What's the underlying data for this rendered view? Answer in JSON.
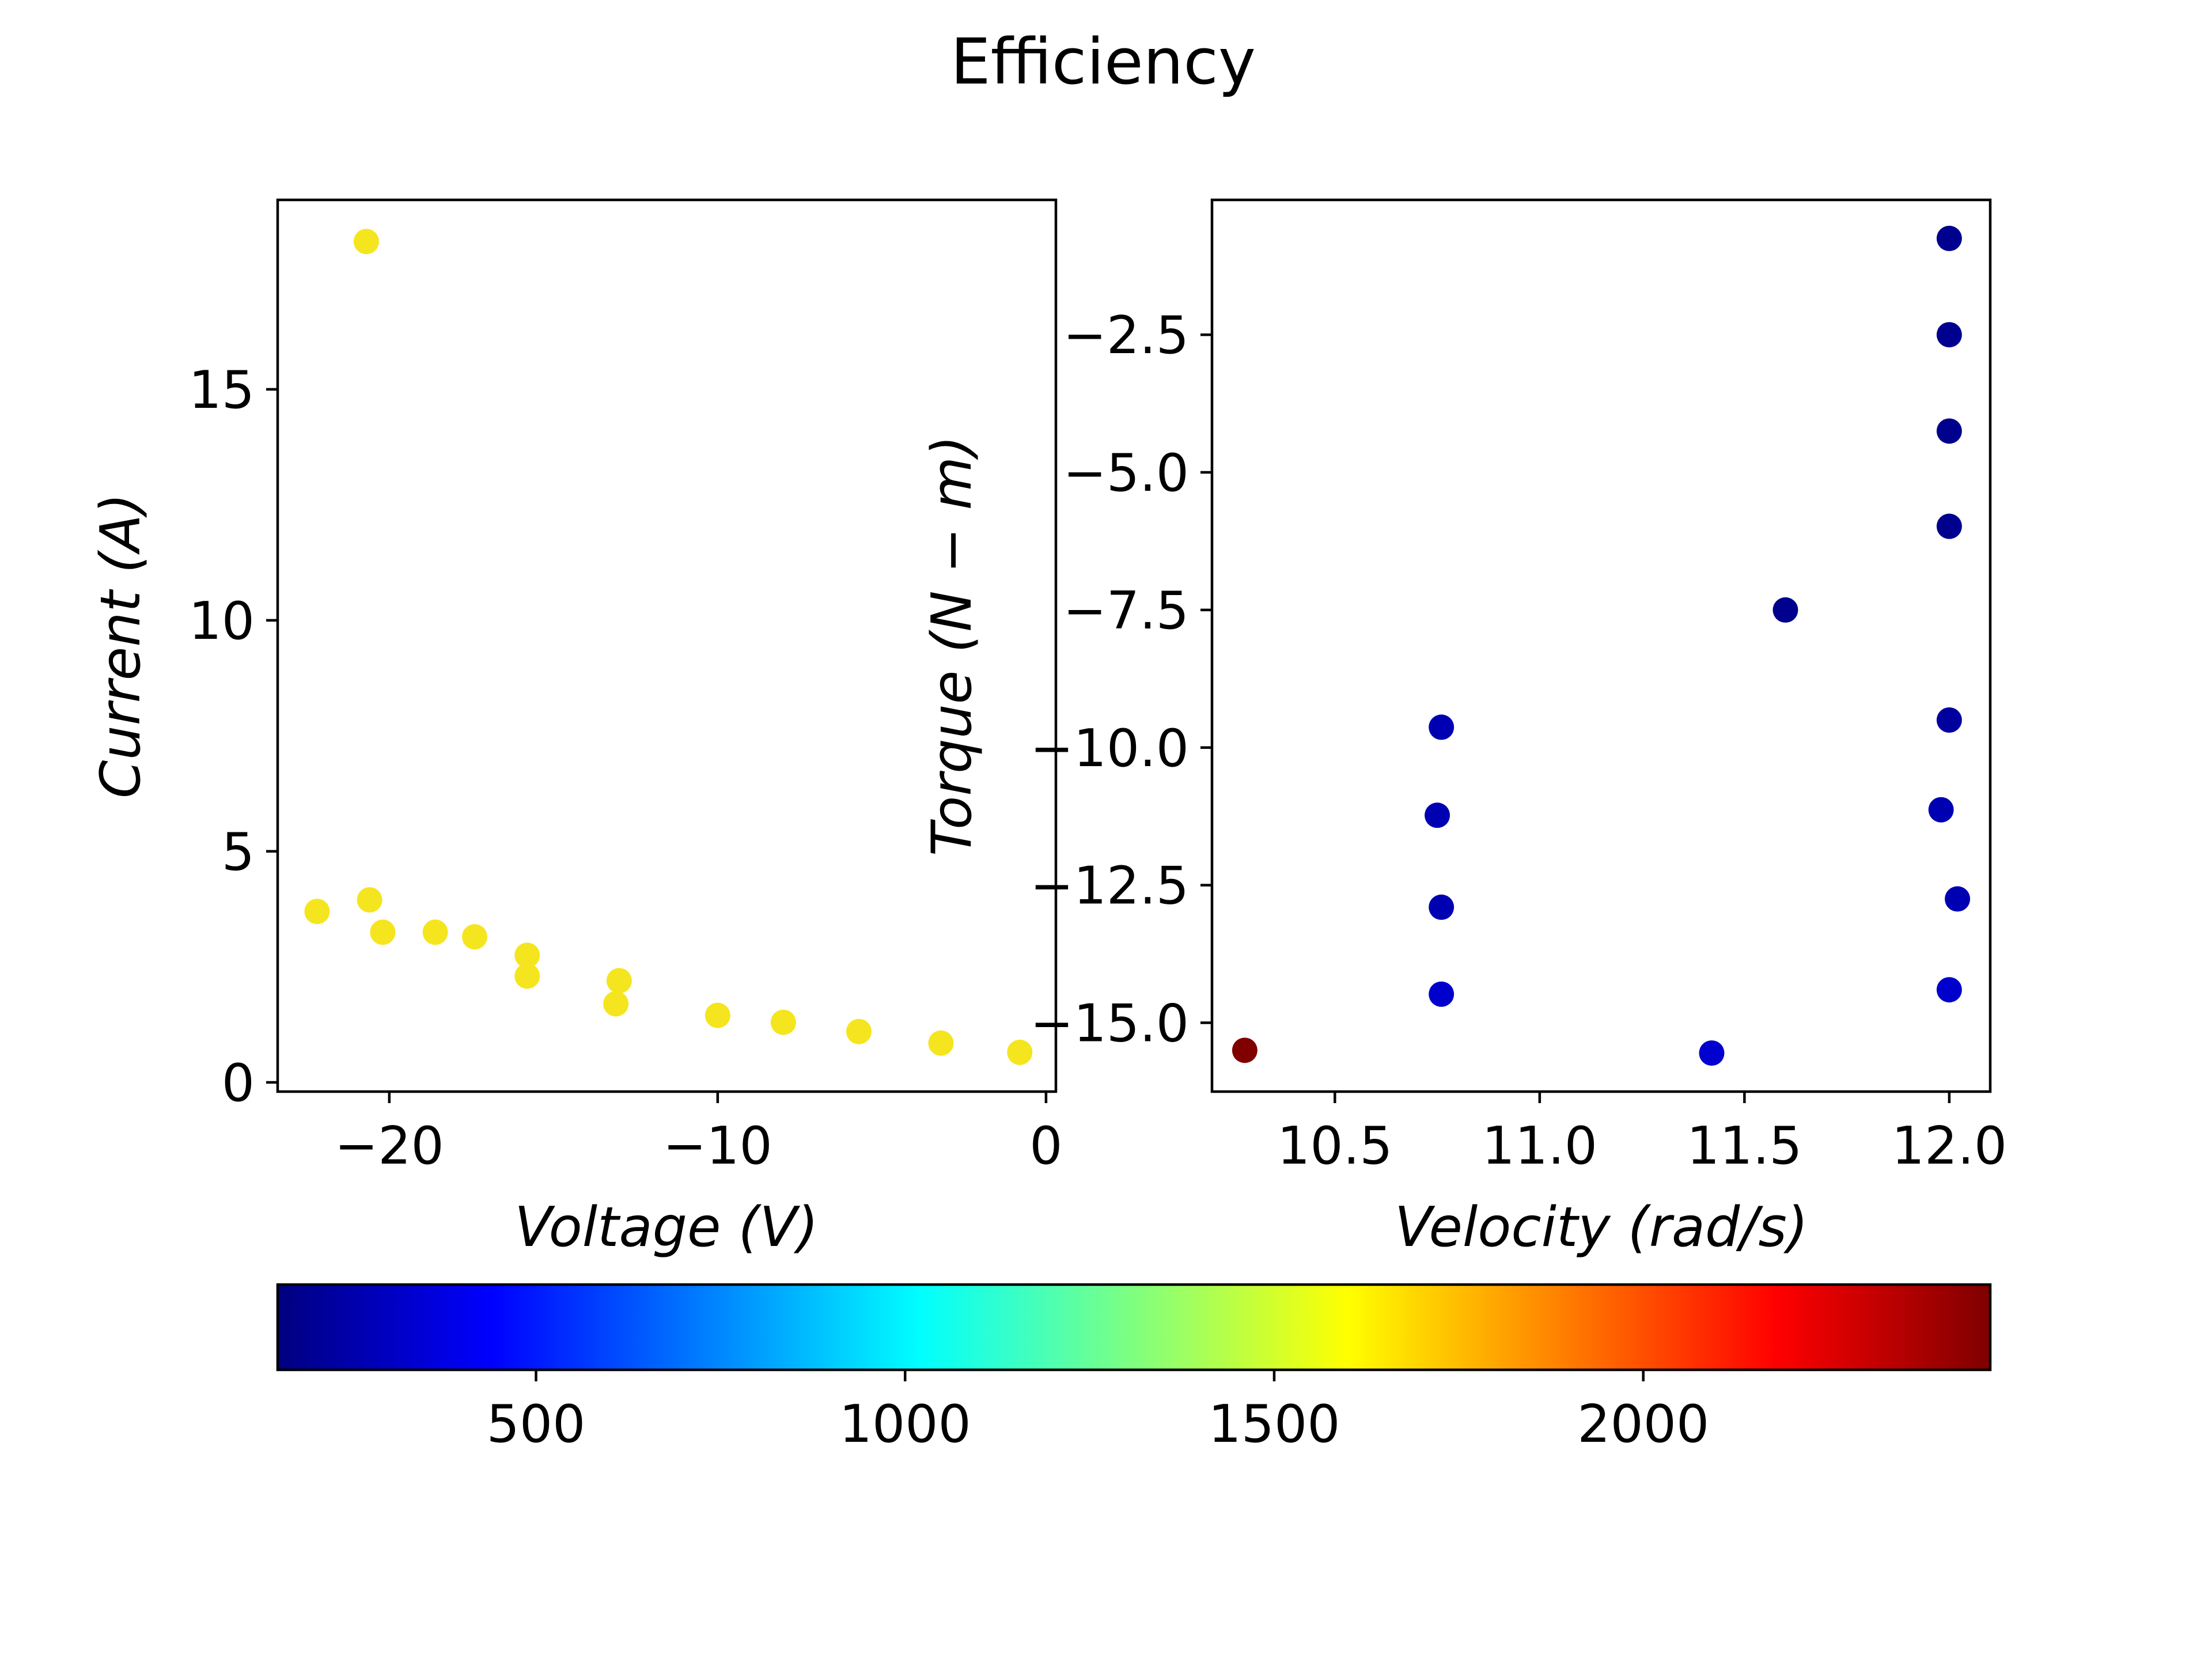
{
  "chart_data": [
    {
      "type": "scatter",
      "title": "Efficiency",
      "xlabel": "Voltage (V)",
      "ylabel": "Current (A)",
      "xlim": [
        -23.4,
        0.3
      ],
      "ylim": [
        -0.2,
        19.1
      ],
      "xticks": [
        -20,
        -10,
        0
      ],
      "xtick_labels": [
        "−20",
        "−10",
        "0"
      ],
      "yticks": [
        0,
        5,
        10,
        15
      ],
      "ytick_labels": [
        "0",
        "5",
        "10",
        "15"
      ],
      "grid": false,
      "color": "#f5e51e",
      "x": [
        -20.7,
        -22.2,
        -20.6,
        -20.2,
        -18.6,
        -17.4,
        -15.8,
        -15.8,
        -13.0,
        -13.1,
        -10.0,
        -8.0,
        -5.7,
        -3.2,
        -0.8
      ],
      "y": [
        18.2,
        3.7,
        3.95,
        3.25,
        3.25,
        3.15,
        2.75,
        2.3,
        2.2,
        1.7,
        1.45,
        1.3,
        1.1,
        0.85,
        0.65
      ]
    },
    {
      "type": "scatter",
      "xlabel": "Velocity (rad/s)",
      "ylabel": "Torque (N − m)",
      "xlim": [
        10.2,
        12.1
      ],
      "ylim": [
        -16.25,
        -0.05
      ],
      "xticks": [
        10.5,
        11.0,
        11.5,
        12.0
      ],
      "xtick_labels": [
        "10.5",
        "11.0",
        "11.5",
        "12.0"
      ],
      "yticks": [
        -2.5,
        -5.0,
        -7.5,
        -10.0,
        -12.5,
        -15.0
      ],
      "ytick_labels": [
        "−2.5",
        "−5.0",
        "−7.5",
        "−10.0",
        "−12.5",
        "−15.0"
      ],
      "grid": false,
      "x": [
        12.0,
        12.0,
        12.0,
        12.0,
        11.6,
        12.0,
        10.76,
        10.75,
        11.98,
        10.76,
        12.02,
        10.76,
        12.0,
        10.28,
        11.42
      ],
      "y": [
        -0.75,
        -2.5,
        -4.25,
        -5.98,
        -7.5,
        -9.5,
        -9.63,
        -11.23,
        -11.13,
        -12.9,
        -12.75,
        -14.48,
        -14.4,
        -15.5,
        -15.55
      ],
      "colors": [
        "#00008f",
        "#00008f",
        "#00008f",
        "#00008f",
        "#00008f",
        "#00009f",
        "#0000b3",
        "#0000b3",
        "#0000b3",
        "#0000b3",
        "#0000b3",
        "#0000cc",
        "#0000cc",
        "#800000",
        "#0000d0"
      ]
    }
  ],
  "colorbar": {
    "cmap": "jet",
    "vmin": 150,
    "vmax": 2470,
    "ticks": [
      500,
      1000,
      1500,
      2000
    ],
    "tick_labels": [
      "500",
      "1000",
      "1500",
      "2000"
    ],
    "stops": [
      "#00007f",
      "#0000ff",
      "#007fff",
      "#00ffff",
      "#7fff7f",
      "#ffff00",
      "#ff7f00",
      "#ff0000",
      "#7f0000"
    ]
  }
}
